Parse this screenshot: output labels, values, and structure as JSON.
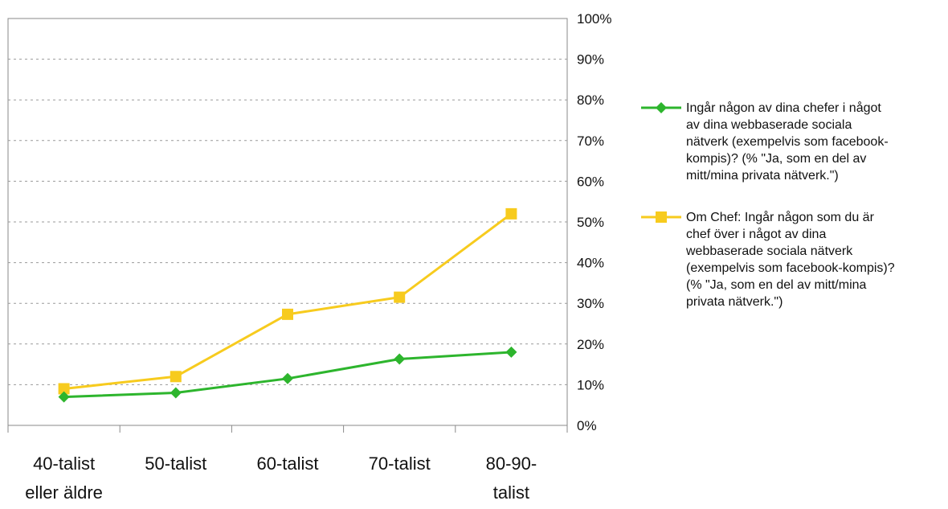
{
  "chart_data": {
    "type": "line",
    "categories": [
      [
        "40-talist",
        "eller äldre"
      ],
      [
        "50-talist"
      ],
      [
        "60-talist"
      ],
      [
        "70-talist"
      ],
      [
        "80-90-",
        "talist"
      ]
    ],
    "series": [
      {
        "name_lines": [
          "Ingår någon av dina chefer i något",
          "av dina webbaserade sociala",
          "nätverk (exempelvis som facebook-",
          "kompis)? (% \"Ja, som en del av",
          "mitt/mina privata nätverk.\")"
        ],
        "values": [
          7,
          8,
          11.5,
          16.3,
          18
        ],
        "color": "#2db52d",
        "marker": "diamond"
      },
      {
        "name_lines": [
          "Om Chef: Ingår någon som du är",
          "chef över i något av dina",
          "webbaserade sociala nätverk",
          "(exempelvis som facebook-kompis)?",
          "(% \"Ja, som en del av mitt/mina",
          "privata nätverk.\")"
        ],
        "values": [
          9,
          12,
          27.3,
          31.5,
          52
        ],
        "color": "#f7cb1e",
        "marker": "square"
      }
    ],
    "yticks": [
      "0%",
      "10%",
      "20%",
      "30%",
      "40%",
      "50%",
      "60%",
      "70%",
      "80%",
      "90%",
      "100%"
    ],
    "ylim": [
      0,
      100
    ],
    "grid": true,
    "legend_position": "right"
  }
}
